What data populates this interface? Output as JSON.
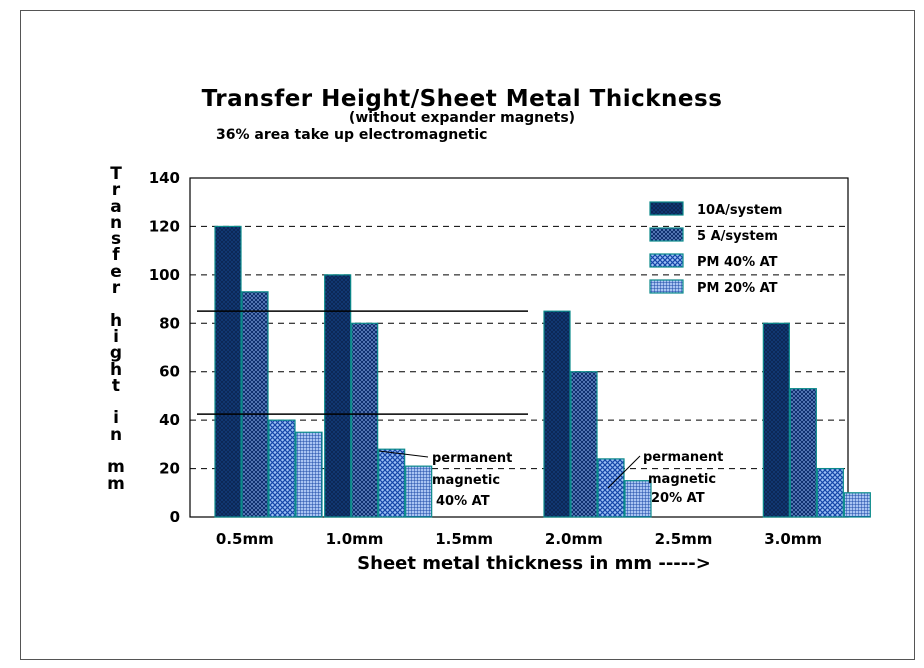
{
  "chart_data": {
    "type": "bar",
    "title": "Transfer Height/Sheet Metal Thickness",
    "subtitle": "(without expander magnets)",
    "subtitle2": "36% area take up    electromagnetic",
    "ylabel": "Transfer hight in mm",
    "ylabel_lines": [
      "T",
      "r",
      "a",
      "n",
      "s",
      "f",
      "e",
      "r",
      "",
      "h",
      "i",
      "g",
      "h",
      "t",
      "",
      "i",
      "n",
      "",
      "m",
      "m"
    ],
    "xlabel": "Sheet metal thickness in mm ----->",
    "categories": [
      "0.5mm",
      "1.0mm",
      "1.5mm",
      "2.0mm",
      "2.5mm",
      "3.0mm"
    ],
    "ylim": [
      0,
      140
    ],
    "yticks": [
      0,
      20,
      40,
      60,
      80,
      100,
      120,
      140
    ],
    "grid": "horizontal dashed",
    "legend_position": "top-right",
    "series": [
      {
        "name": "10A/system",
        "values": [
          120,
          100,
          null,
          85,
          null,
          80
        ],
        "color": "#0d2f66",
        "pattern": "solid"
      },
      {
        "name": "5 A/system",
        "values": [
          93,
          80,
          null,
          60,
          null,
          53
        ],
        "color": "#1c4fa0",
        "pattern": "crosshatch"
      },
      {
        "name": "PM 40% AT",
        "values": [
          40,
          28,
          null,
          24,
          null,
          20
        ],
        "color": "#2a63c7",
        "pattern": "fine-crosshatch"
      },
      {
        "name": "PM 20% AT",
        "values": [
          35,
          21,
          null,
          15,
          null,
          10
        ],
        "color": "#3a6fd0",
        "pattern": "grid"
      }
    ],
    "reference_lines": [
      85,
      42.5
    ],
    "annotations": [
      {
        "lines": [
          "permanent",
          "magnetic",
          "40% AT"
        ]
      },
      {
        "lines": [
          "permanent",
          "magnetic",
          "20% AT"
        ]
      }
    ]
  }
}
